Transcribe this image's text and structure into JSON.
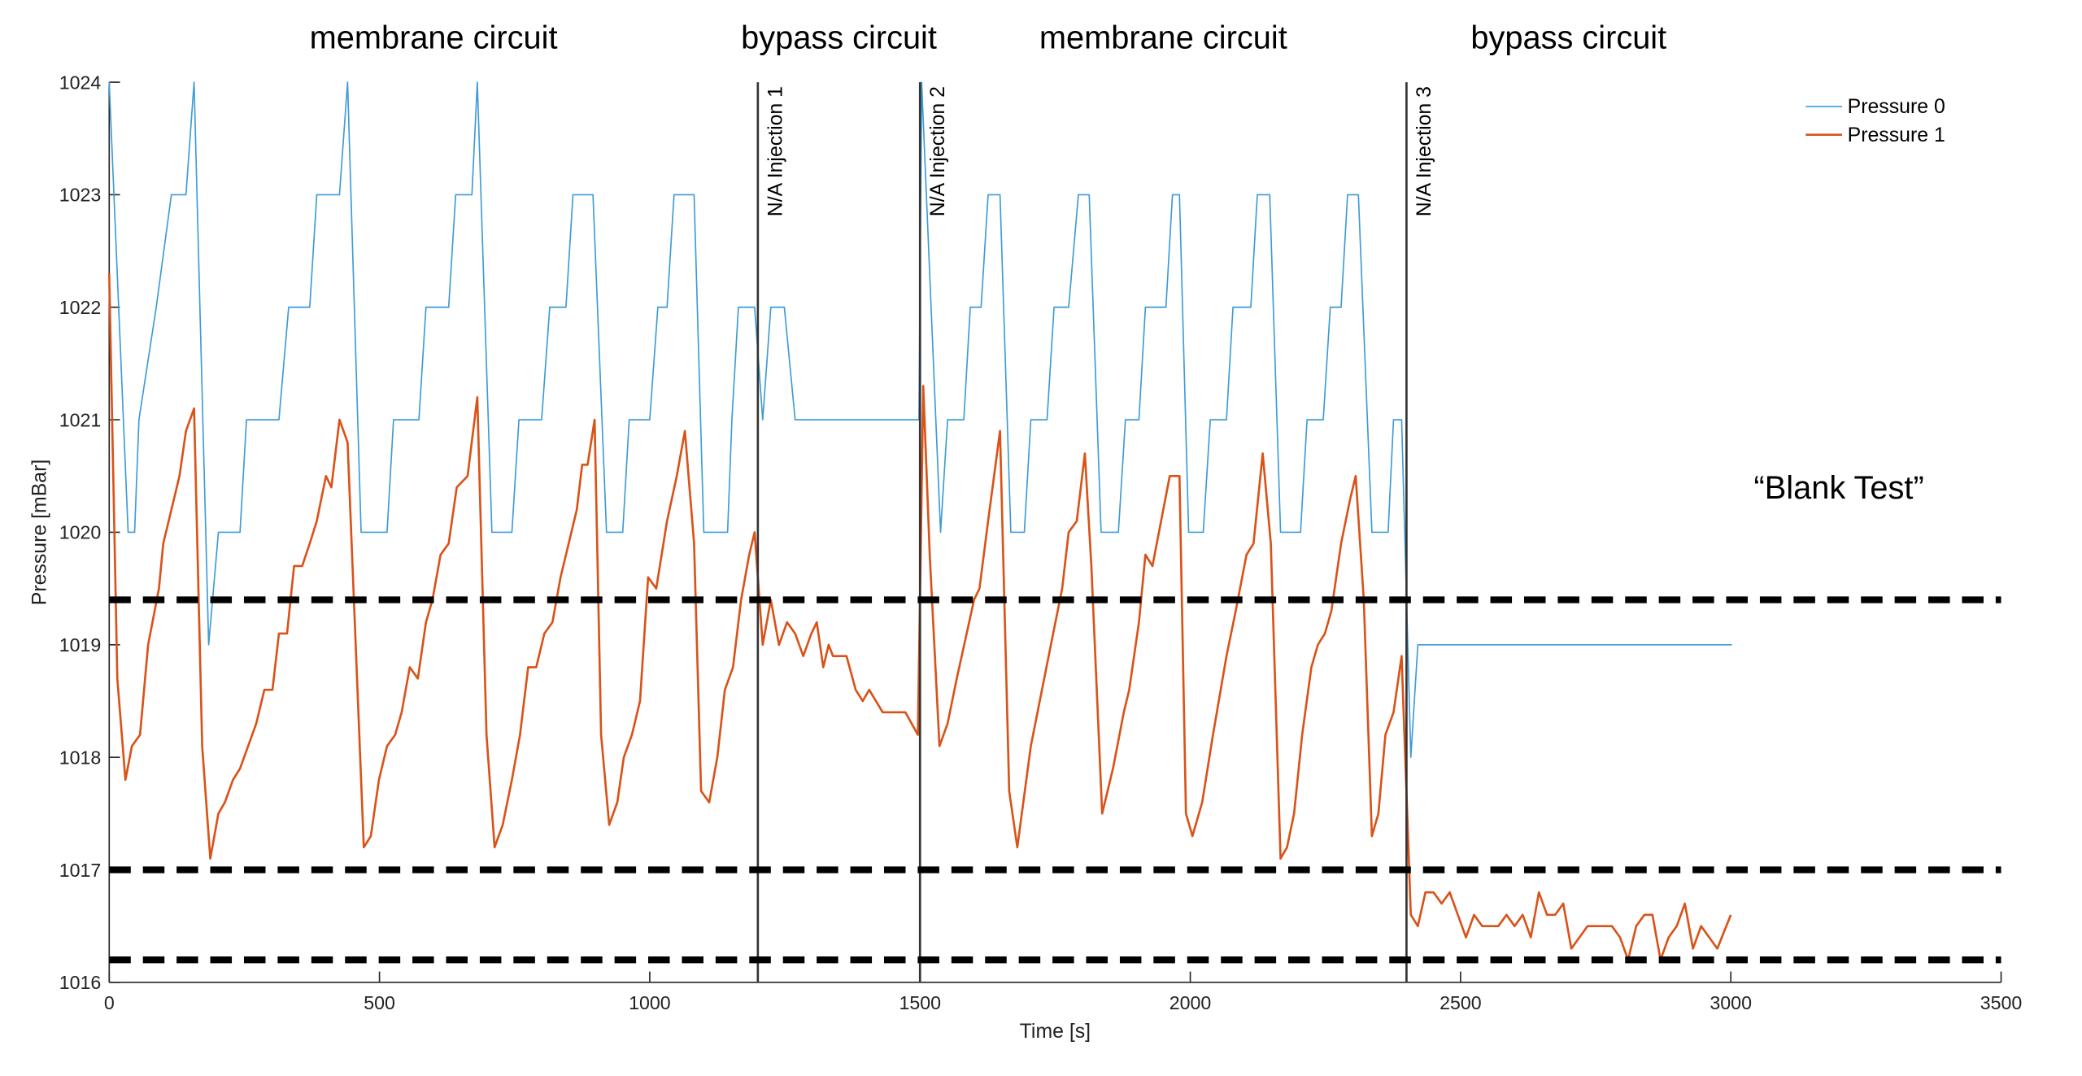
{
  "chart_data": {
    "type": "line",
    "xlabel": "Time [s]",
    "ylabel": "Pressure [mBar]",
    "xlim": [
      0,
      3500
    ],
    "xticks": [
      0,
      500,
      1000,
      1500,
      2000,
      2500,
      3000,
      3500
    ],
    "ylim": [
      1016,
      1024
    ],
    "yticks": [
      1016,
      1017,
      1018,
      1019,
      1020,
      1021,
      1022,
      1023,
      1024
    ],
    "legend": "top-right",
    "regions": [
      {
        "label": "membrane circuit",
        "x": [
          0,
          1200
        ]
      },
      {
        "label": "bypass circuit",
        "x": [
          1200,
          1500
        ]
      },
      {
        "label": "membrane circuit",
        "x": [
          1500,
          2400
        ]
      },
      {
        "label": "bypass circuit",
        "x": [
          2400,
          3000
        ]
      }
    ],
    "vlines": [
      {
        "x": 1200,
        "label": "N/A Injection 1"
      },
      {
        "x": 1500,
        "label": "N/A Injection 2"
      },
      {
        "x": 2400,
        "label": "N/A Injection 3"
      }
    ],
    "hlines": [
      1019.4,
      1017,
      1016.2
    ],
    "annotations": [
      {
        "text": "“Blank Test”",
        "x": 3200,
        "y": 1020.3
      }
    ],
    "series": [
      {
        "name": "Pressure 0",
        "color": "#3d9bd6",
        "x": [
          0,
          35,
          47,
          55,
          87,
          115,
          142,
          157,
          184,
          202,
          242,
          254,
          314,
          332,
          371,
          384,
          426,
          441,
          466,
          514,
          526,
          573,
          586,
          628,
          641,
          671,
          681,
          708,
          745,
          758,
          800,
          815,
          845,
          858,
          895,
          920,
          950,
          962,
          1000,
          1015,
          1032,
          1045,
          1082,
          1100,
          1144,
          1152,
          1164,
          1194,
          1209,
          1224,
          1249,
          1269,
          1498,
          1503,
          1538,
          1551,
          1581,
          1593,
          1613,
          1626,
          1648,
          1668,
          1693,
          1705,
          1735,
          1748,
          1775,
          1793,
          1813,
          1835,
          1867,
          1880,
          1905,
          1917,
          1955,
          1967,
          1980,
          1997,
          2024,
          2037,
          2067,
          2079,
          2112,
          2124,
          2147,
          2167,
          2204,
          2216,
          2246,
          2259,
          2279,
          2291,
          2311,
          2336,
          2366,
          2376,
          2391,
          2408,
          2421,
          3002
        ],
        "values": [
          1024,
          1020,
          1020,
          1021,
          1022,
          1023,
          1023,
          1024,
          1019,
          1020,
          1020,
          1021,
          1021,
          1022,
          1022,
          1023,
          1023,
          1024,
          1020,
          1020,
          1021,
          1021,
          1022,
          1022,
          1023,
          1023,
          1024,
          1020,
          1020,
          1021,
          1021,
          1022,
          1022,
          1023,
          1023,
          1020,
          1020,
          1021,
          1021,
          1022,
          1022,
          1023,
          1023,
          1020,
          1020,
          1021,
          1022,
          1022,
          1021,
          1022,
          1022,
          1021,
          1021,
          1024,
          1020,
          1021,
          1021,
          1022,
          1022,
          1023,
          1023,
          1020,
          1020,
          1021,
          1021,
          1022,
          1022,
          1023,
          1023,
          1020,
          1020,
          1021,
          1021,
          1022,
          1022,
          1023,
          1023,
          1020,
          1020,
          1021,
          1021,
          1022,
          1022,
          1023,
          1023,
          1020,
          1020,
          1021,
          1021,
          1022,
          1022,
          1023,
          1023,
          1020,
          1020,
          1021,
          1021,
          1018,
          1019,
          1019
        ]
      },
      {
        "name": "Pressure 1",
        "color": "#d95319",
        "x": [
          0,
          15,
          30,
          42,
          57,
          72,
          92,
          100,
          115,
          130,
          142,
          157,
          172,
          187,
          202,
          214,
          229,
          242,
          257,
          272,
          287,
          302,
          314,
          329,
          342,
          357,
          371,
          384,
          401,
          411,
          426,
          441,
          471,
          484,
          499,
          514,
          529,
          541,
          556,
          571,
          586,
          598,
          613,
          628,
          643,
          663,
          681,
          698,
          713,
          728,
          745,
          760,
          775,
          790,
          805,
          820,
          835,
          850,
          865,
          875,
          885,
          898,
          910,
          925,
          940,
          952,
          967,
          982,
          997,
          1012,
          1032,
          1050,
          1065,
          1082,
          1095,
          1110,
          1125,
          1139,
          1154,
          1169,
          1184,
          1194,
          1209,
          1224,
          1239,
          1254,
          1269,
          1284,
          1299,
          1309,
          1321,
          1331,
          1339,
          1364,
          1381,
          1394,
          1406,
          1431,
          1473,
          1496,
          1506,
          1518,
          1536,
          1551,
          1568,
          1600,
          1610,
          1626,
          1648,
          1665,
          1680,
          1705,
          1738,
          1763,
          1775,
          1790,
          1805,
          1817,
          1837,
          1857,
          1877,
          1887,
          1905,
          1917,
          1930,
          1962,
          1980,
          1992,
          2004,
          2022,
          2042,
          2067,
          2084,
          2104,
          2117,
          2134,
          2149,
          2167,
          2179,
          2192,
          2207,
          2224,
          2236,
          2249,
          2261,
          2279,
          2296,
          2306,
          2321,
          2336,
          2348,
          2361,
          2376,
          2391,
          2408,
          2421,
          2435,
          2450,
          2465,
          2480,
          2495,
          2510,
          2525,
          2540,
          2555,
          2570,
          2585,
          2600,
          2615,
          2630,
          2645,
          2660,
          2675,
          2690,
          2705,
          2720,
          2735,
          2750,
          2765,
          2780,
          2795,
          2810,
          2825,
          2840,
          2855,
          2870,
          2885,
          2900,
          2915,
          2930,
          2945,
          2960,
          2975,
          3000
        ],
        "values": [
          1022.3,
          1018.7,
          1017.8,
          1018.1,
          1018.2,
          1019,
          1019.5,
          1019.9,
          1020.2,
          1020.5,
          1020.9,
          1021.1,
          1018.1,
          1017.1,
          1017.5,
          1017.6,
          1017.8,
          1017.9,
          1018.1,
          1018.3,
          1018.6,
          1018.6,
          1019.1,
          1019.1,
          1019.7,
          1019.7,
          1019.9,
          1020.1,
          1020.5,
          1020.4,
          1021,
          1020.8,
          1017.2,
          1017.3,
          1017.8,
          1018.1,
          1018.2,
          1018.4,
          1018.8,
          1018.7,
          1019.2,
          1019.4,
          1019.8,
          1019.9,
          1020.4,
          1020.5,
          1021.2,
          1018.2,
          1017.2,
          1017.4,
          1017.8,
          1018.2,
          1018.8,
          1018.8,
          1019.1,
          1019.2,
          1019.6,
          1019.9,
          1020.2,
          1020.6,
          1020.6,
          1021,
          1018.2,
          1017.4,
          1017.6,
          1018,
          1018.2,
          1018.5,
          1019.6,
          1019.5,
          1020.1,
          1020.5,
          1020.9,
          1019.9,
          1017.7,
          1017.6,
          1018,
          1018.6,
          1018.8,
          1019.4,
          1019.8,
          1020,
          1019,
          1019.4,
          1019,
          1019.2,
          1019.1,
          1018.9,
          1019.1,
          1019.2,
          1018.8,
          1019,
          1018.9,
          1018.9,
          1018.6,
          1018.5,
          1018.6,
          1018.4,
          1018.4,
          1018.2,
          1021.3,
          1019.8,
          1018.1,
          1018.3,
          1018.7,
          1019.4,
          1019.5,
          1020.1,
          1020.9,
          1017.7,
          1017.2,
          1018.1,
          1018.9,
          1019.5,
          1020,
          1020.1,
          1020.7,
          1019.7,
          1017.5,
          1017.9,
          1018.4,
          1018.6,
          1019.2,
          1019.8,
          1019.7,
          1020.5,
          1020.5,
          1017.5,
          1017.3,
          1017.6,
          1018.2,
          1018.9,
          1019.3,
          1019.8,
          1019.9,
          1020.7,
          1019.9,
          1017.1,
          1017.2,
          1017.5,
          1018.2,
          1018.8,
          1019,
          1019.1,
          1019.3,
          1019.9,
          1020.3,
          1020.5,
          1019.4,
          1017.3,
          1017.5,
          1018.2,
          1018.4,
          1018.9,
          1016.6,
          1016.5,
          1016.8,
          1016.8,
          1016.7,
          1016.8,
          1016.6,
          1016.4,
          1016.6,
          1016.5,
          1016.5,
          1016.5,
          1016.6,
          1016.5,
          1016.6,
          1016.4,
          1016.8,
          1016.6,
          1016.6,
          1016.7,
          1016.3,
          1016.4,
          1016.5,
          1016.5,
          1016.5,
          1016.5,
          1016.4,
          1016.2,
          1016.5,
          1016.6,
          1016.6,
          1016.2,
          1016.4,
          1016.5,
          1016.7,
          1016.3,
          1016.5,
          1016.4,
          1016.3,
          1016.6
        ]
      }
    ]
  }
}
